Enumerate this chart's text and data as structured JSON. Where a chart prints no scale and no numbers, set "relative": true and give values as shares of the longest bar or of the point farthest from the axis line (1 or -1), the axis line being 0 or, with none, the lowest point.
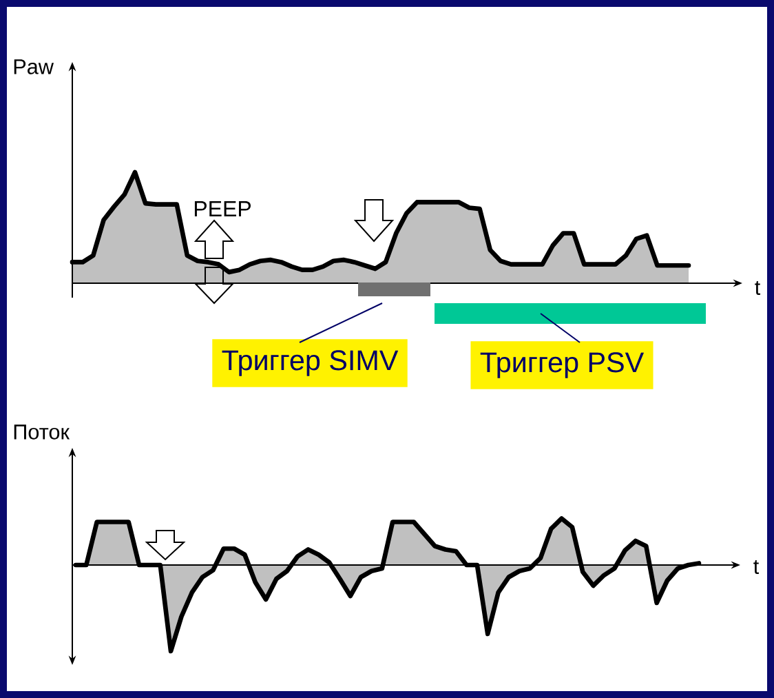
{
  "chart_data": [
    {
      "type": "area",
      "relative": true,
      "ylabel": "Paw",
      "xlabel": "t",
      "categories": [
        null,
        null,
        null,
        null,
        null,
        null,
        null,
        null,
        null,
        null,
        null,
        null,
        null,
        null,
        null,
        null,
        null,
        null,
        null,
        null,
        null,
        null,
        null,
        null,
        null,
        null,
        null,
        null,
        null,
        null,
        null,
        null,
        null,
        null,
        null,
        null,
        null,
        null,
        null,
        null,
        null,
        null,
        null,
        null,
        null,
        null,
        null,
        null,
        null,
        null,
        null,
        null,
        null,
        null,
        null,
        null,
        null,
        null,
        null,
        null
      ],
      "series": [
        {
          "color": "#c0c0c0",
          "values": [
            0.19,
            0.19,
            0.25,
            0.57,
            0.69,
            0.8,
            1.0,
            0.72,
            0.71,
            0.71,
            0.71,
            0.25,
            0.2,
            0.19,
            0.17,
            0.1,
            0.12,
            0.17,
            0.2,
            0.21,
            0.19,
            0.15,
            0.12,
            0.12,
            0.15,
            0.2,
            0.21,
            0.19,
            0.16,
            0.13,
            0.19,
            0.45,
            0.63,
            0.73,
            0.73,
            0.73,
            0.73,
            0.73,
            0.68,
            0.67,
            0.3,
            0.2,
            0.17,
            0.17,
            0.17,
            0.17,
            0.34,
            0.45,
            0.45,
            0.17,
            0.17,
            0.17,
            0.17,
            0.25,
            0.4,
            0.43,
            0.16,
            0.16,
            0.16,
            0.16
          ]
        }
      ],
      "annotations": [
        "PEEP",
        "Триггер SIMV",
        "Триггер PSV"
      ]
    },
    {
      "type": "area",
      "relative": true,
      "ylabel": "Поток",
      "xlabel": "t",
      "categories": [
        null,
        null,
        null,
        null,
        null,
        null,
        null,
        null,
        null,
        null,
        null,
        null,
        null,
        null,
        null,
        null,
        null,
        null,
        null,
        null,
        null,
        null,
        null,
        null,
        null,
        null,
        null,
        null,
        null,
        null,
        null,
        null,
        null,
        null,
        null,
        null,
        null,
        null,
        null,
        null,
        null,
        null,
        null,
        null,
        null,
        null,
        null,
        null,
        null,
        null,
        null,
        null,
        null,
        null,
        null,
        null,
        null,
        null,
        null,
        null
      ],
      "series": [
        {
          "color": "#c0c0c0",
          "values": [
            0,
            0,
            0.5,
            0.5,
            0.5,
            0.5,
            0,
            0,
            0,
            -1.0,
            -0.6,
            -0.32,
            -0.14,
            -0.06,
            0.19,
            0.19,
            0.12,
            -0.2,
            -0.4,
            -0.16,
            -0.07,
            0.1,
            0.18,
            0.12,
            0.03,
            -0.16,
            -0.36,
            -0.14,
            -0.07,
            -0.04,
            0.5,
            0.5,
            0.5,
            0.36,
            0.22,
            0.18,
            0.16,
            0,
            0,
            -0.8,
            -0.32,
            -0.14,
            -0.07,
            -0.04,
            0.08,
            0.42,
            0.54,
            0.44,
            -0.08,
            -0.24,
            -0.12,
            -0.04,
            0.17,
            0.28,
            0.22,
            -0.44,
            -0.18,
            -0.04,
            0,
            0.02
          ]
        }
      ]
    }
  ]
}
